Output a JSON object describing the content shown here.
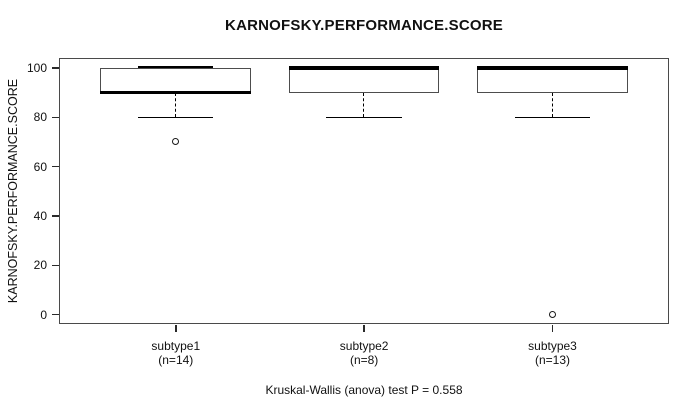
{
  "title": "KARNOFSKY.PERFORMANCE.SCORE",
  "y_axis": {
    "label": "KARNOFSKY.PERFORMANCE.SCORE",
    "tick_labels": [
      "0",
      "20",
      "40",
      "60",
      "80",
      "100"
    ]
  },
  "x_axis": {
    "groups": [
      {
        "name": "subtype1",
        "n_label": "(n=14)"
      },
      {
        "name": "subtype2",
        "n_label": "(n=8)"
      },
      {
        "name": "subtype3",
        "n_label": "(n=13)"
      }
    ]
  },
  "caption": "Kruskal-Wallis (anova) test P = 0.558",
  "colors": {
    "line": "#000000",
    "box_fill": "#ffffff",
    "background": "#ffffff"
  },
  "chart_data": {
    "type": "boxplot",
    "title": "KARNOFSKY.PERFORMANCE.SCORE",
    "xlabel": "",
    "ylabel": "KARNOFSKY.PERFORMANCE.SCORE",
    "ylim": [
      0,
      100
    ],
    "yticks": [
      0,
      20,
      40,
      60,
      80,
      100
    ],
    "grid": false,
    "legend": false,
    "categories": [
      "subtype1 (n=14)",
      "subtype2 (n=8)",
      "subtype3 (n=13)"
    ],
    "boxes": [
      {
        "group": "subtype1",
        "n": 14,
        "q1": 90,
        "median": 90,
        "q3": 100,
        "whisker_low": 80,
        "whisker_high": 100,
        "outliers": [
          70
        ]
      },
      {
        "group": "subtype2",
        "n": 8,
        "q1": 90,
        "median": 100,
        "q3": 100,
        "whisker_low": 80,
        "whisker_high": 100,
        "outliers": []
      },
      {
        "group": "subtype3",
        "n": 13,
        "q1": 90,
        "median": 100,
        "q3": 100,
        "whisker_low": 80,
        "whisker_high": 100,
        "outliers": [
          0
        ]
      }
    ],
    "annotation": "Kruskal-Wallis (anova) test P = 0.558",
    "p_value": 0.558
  }
}
